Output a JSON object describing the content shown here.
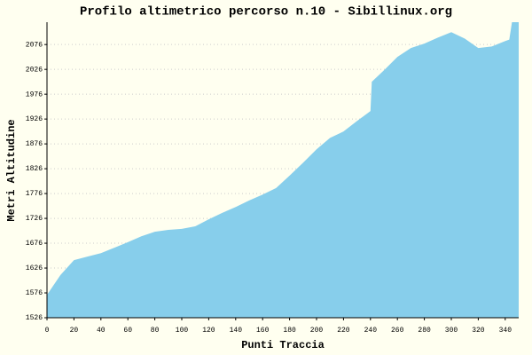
{
  "chart_data": {
    "type": "area",
    "title": "Profilo altimetrico percorso n.10 - Sibillinux.org",
    "x_label": "Punti Traccia",
    "y_label": "Metri Altitudine",
    "x": [
      0,
      10,
      20,
      30,
      40,
      50,
      60,
      70,
      80,
      90,
      100,
      110,
      120,
      130,
      140,
      150,
      160,
      170,
      180,
      190,
      200,
      210,
      220,
      230,
      240,
      241,
      250,
      260,
      270,
      280,
      290,
      300,
      310,
      320,
      330,
      340,
      343,
      345,
      350
    ],
    "series": [
      {
        "name": "Altitudine",
        "color": "#87ceeb",
        "values": [
          1572,
          1612,
          1642,
          1649,
          1656,
          1667,
          1678,
          1690,
          1699,
          1703,
          1705,
          1710,
          1724,
          1737,
          1749,
          1762,
          1774,
          1787,
          1812,
          1838,
          1865,
          1888,
          1901,
          1922,
          1942,
          2001,
          2024,
          2051,
          2069,
          2078,
          2090,
          2101,
          2088,
          2069,
          2072,
          2083,
          2086,
          2121,
          2121
        ]
      }
    ],
    "xlim": [
      0,
      350
    ],
    "ylim": [
      1526,
      2121
    ],
    "xticks": [
      0,
      20,
      40,
      60,
      80,
      100,
      120,
      140,
      160,
      180,
      200,
      220,
      240,
      260,
      280,
      300,
      320,
      340
    ],
    "yticks": [
      1526,
      1576,
      1626,
      1676,
      1726,
      1776,
      1826,
      1876,
      1926,
      1976,
      2026,
      2076
    ],
    "grid": true
  }
}
